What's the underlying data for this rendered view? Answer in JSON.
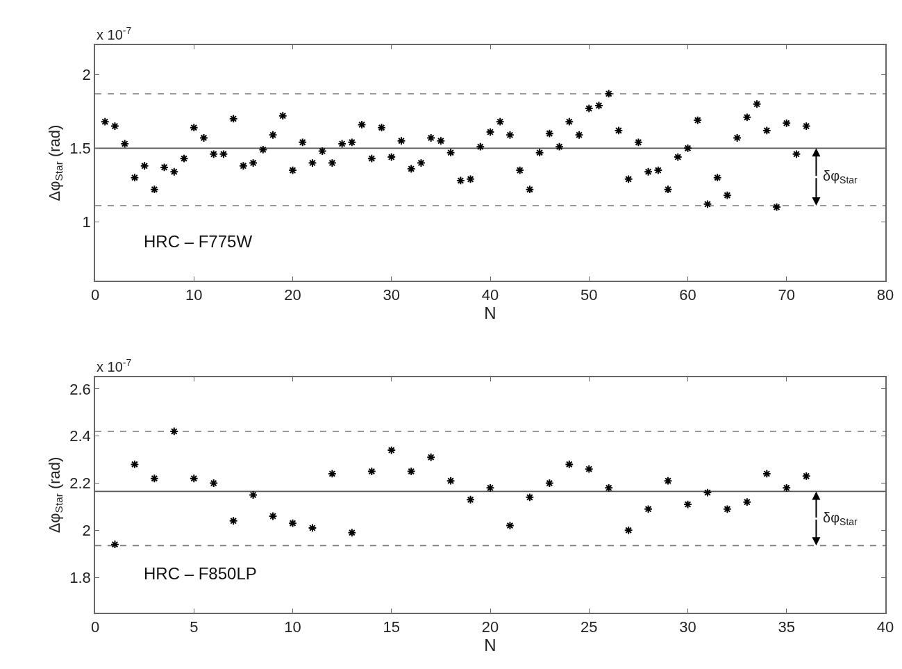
{
  "chart_data": [
    {
      "type": "scatter",
      "xlabel": "N",
      "ylabel": "Δφ$_{Star}$ (rad)",
      "marker": "cross",
      "grid": false,
      "x": [
        1,
        2,
        3,
        4,
        5,
        6,
        7,
        8,
        9,
        10,
        11,
        12,
        13,
        14,
        15,
        16,
        17,
        18,
        19,
        20,
        21,
        22,
        23,
        24,
        25,
        26,
        27,
        28,
        29,
        30,
        31,
        32,
        33,
        34,
        35,
        36,
        37,
        38,
        39,
        40,
        41,
        42,
        43,
        44,
        45,
        46,
        47,
        48,
        49,
        50,
        51,
        52,
        53,
        54,
        55,
        56,
        57,
        58,
        59,
        60,
        61,
        62,
        63,
        64,
        65,
        66,
        67,
        68,
        69,
        70,
        71,
        72
      ],
      "series": [
        {
          "color": "#000000",
          "values": [
            1.68,
            1.65,
            1.53,
            1.3,
            1.38,
            1.22,
            1.37,
            1.34,
            1.43,
            1.64,
            1.57,
            1.46,
            1.46,
            1.7,
            1.38,
            1.4,
            1.49,
            1.59,
            1.72,
            1.35,
            1.54,
            1.4,
            1.48,
            1.4,
            1.53,
            1.54,
            1.66,
            1.43,
            1.64,
            1.44,
            1.55,
            1.36,
            1.4,
            1.57,
            1.55,
            1.47,
            1.28,
            1.29,
            1.51,
            1.61,
            1.68,
            1.59,
            1.35,
            1.22,
            1.47,
            1.6,
            1.51,
            1.68,
            1.59,
            1.77,
            1.79,
            1.87,
            1.62,
            1.29,
            1.54,
            1.34,
            1.35,
            1.22,
            1.44,
            1.5,
            1.69,
            1.12,
            1.3,
            1.18,
            1.57,
            1.71,
            1.8,
            1.62,
            1.1,
            1.67,
            1.46,
            1.65
          ]
        }
      ],
      "xlim": [
        0,
        80
      ],
      "xticks": [
        0,
        10,
        20,
        30,
        40,
        50,
        60,
        70,
        80
      ],
      "ylim": [
        0.6,
        2.2
      ],
      "yticks": [
        1,
        1.5,
        2
      ],
      "ref_lines": [
        {
          "axis": "y",
          "value": 1.5,
          "color": "#555555",
          "line_style": "solid"
        },
        {
          "axis": "y",
          "value": 1.87,
          "color": "#777777",
          "line_style": "dashed"
        },
        {
          "axis": "y",
          "value": 1.11,
          "color": "#777777",
          "line_style": "dashed"
        }
      ],
      "annotations": [
        "x 10$^{-7}$",
        "HRC – F775W",
        {
          "text": "δφ$_{Star}$",
          "x": 73,
          "y": 1.5
        }
      ]
    },
    {
      "type": "scatter",
      "xlabel": "N",
      "ylabel": "Δφ$_{Star}$ (rad)",
      "marker": "cross",
      "grid": false,
      "x": [
        1,
        2,
        3,
        4,
        5,
        6,
        7,
        8,
        9,
        10,
        11,
        12,
        13,
        14,
        15,
        16,
        17,
        18,
        19,
        20,
        21,
        22,
        23,
        24,
        25,
        26,
        27,
        28,
        29,
        30,
        31,
        32,
        33,
        34,
        35,
        36
      ],
      "series": [
        {
          "color": "#000000",
          "values": [
            1.94,
            2.28,
            2.22,
            2.42,
            2.22,
            2.2,
            2.04,
            2.15,
            2.06,
            2.03,
            2.01,
            2.24,
            1.99,
            2.25,
            2.34,
            2.25,
            2.31,
            2.21,
            2.13,
            2.18,
            2.02,
            2.14,
            2.2,
            2.28,
            2.26,
            2.18,
            2.0,
            2.09,
            2.21,
            2.11,
            2.16,
            2.09,
            2.12,
            2.24,
            2.18,
            2.23
          ]
        }
      ],
      "xlim": [
        0,
        40
      ],
      "xticks": [
        0,
        5,
        10,
        15,
        20,
        25,
        30,
        35,
        40
      ],
      "ylim": [
        1.65,
        2.65
      ],
      "yticks": [
        1.8,
        2,
        2.2,
        2.4,
        2.6
      ],
      "ref_lines": [
        {
          "axis": "y",
          "value": 2.165,
          "color": "#555555",
          "line_style": "solid"
        },
        {
          "axis": "y",
          "value": 2.42,
          "color": "#777777",
          "line_style": "dashed"
        },
        {
          "axis": "y",
          "value": 1.935,
          "color": "#777777",
          "line_style": "dashed"
        }
      ],
      "annotations": [
        "x 10$^{-7}$",
        "HRC – F850LP",
        {
          "text": "δφ$_{Star}$",
          "x": 36.5,
          "y": 2.165
        }
      ]
    }
  ]
}
